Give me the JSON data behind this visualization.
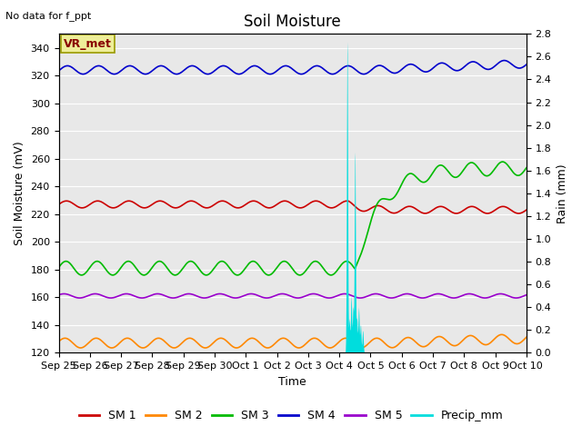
{
  "title": "Soil Moisture",
  "subtitle": "No data for f_ppt",
  "xlabel": "Time",
  "ylabel_left": "Soil Moisture (mV)",
  "ylabel_right": "Rain (mm)",
  "ylim_left": [
    120,
    350
  ],
  "ylim_right": [
    0.0,
    2.8
  ],
  "fig_bg_color": "#ffffff",
  "plot_bg_color": "#e8e8e8",
  "n_days": 15,
  "tick_labels": [
    "Sep 25",
    "Sep 26",
    "Sep 27",
    "Sep 28",
    "Sep 29",
    "Sep 30",
    "Oct 1",
    "Oct 2",
    "Oct 3",
    "Oct 4",
    "Oct 5",
    "Oct 6",
    "Oct 7",
    "Oct 8",
    "Oct 9",
    "Oct 10"
  ],
  "sm1_color": "#cc0000",
  "sm2_color": "#ff8800",
  "sm3_color": "#00bb00",
  "sm4_color": "#0000cc",
  "sm5_color": "#9900cc",
  "precip_color": "#00dddd",
  "vr_box_facecolor": "#eeee99",
  "vr_box_edgecolor": "#999900",
  "vr_text_color": "#880000",
  "grid_color": "#ffffff",
  "title_fontsize": 12,
  "label_fontsize": 9,
  "tick_fontsize": 8,
  "legend_fontsize": 9
}
